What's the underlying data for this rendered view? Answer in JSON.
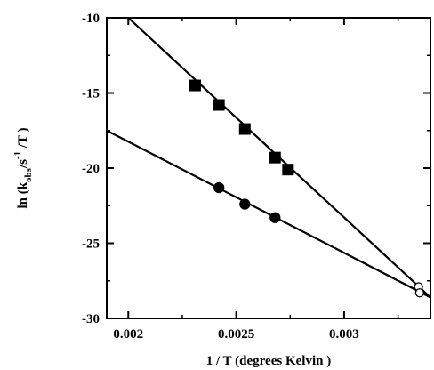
{
  "chart_data": {
    "type": "scatter",
    "title": "",
    "xlabel": "1 / T (degrees Kelvin )",
    "ylabel": {
      "prefix": "ln (k",
      "sub": "obs",
      "mid": "/s",
      "sup": "-1",
      "suffix": " /T )"
    },
    "xlim": [
      0.0019,
      0.0034
    ],
    "ylim": [
      -30,
      -10
    ],
    "x_ticks": [
      0.002,
      0.0025,
      0.003
    ],
    "x_tick_labels": [
      "0.002",
      "0.0025",
      "0.003"
    ],
    "y_ticks": [
      -30,
      -25,
      -20,
      -15,
      -10
    ],
    "y_tick_labels": [
      "-30",
      "-25",
      "-20",
      "-15",
      "-10"
    ],
    "grid": false,
    "legend": "none",
    "series": [
      {
        "marker": "square",
        "filled": true,
        "color": "#000000",
        "points": [
          [
            0.00231,
            -14.5
          ],
          [
            0.00242,
            -15.8
          ],
          [
            0.00254,
            -17.4
          ],
          [
            0.00268,
            -19.3
          ],
          [
            0.00274,
            -20.1
          ]
        ],
        "fit_line": [
          [
            0.002,
            -10.0
          ],
          [
            0.0034,
            -28.6
          ]
        ]
      },
      {
        "marker": "circle",
        "filled": true,
        "color": "#000000",
        "points": [
          [
            0.00242,
            -21.3
          ],
          [
            0.00254,
            -22.4
          ],
          [
            0.00268,
            -23.3
          ]
        ],
        "fit_line": [
          [
            0.0019,
            -17.5
          ],
          [
            0.0034,
            -28.6
          ]
        ]
      },
      {
        "marker": "circle",
        "filled": false,
        "color": "#000000",
        "points": [
          [
            0.003345,
            -27.9
          ],
          [
            0.00335,
            -28.3
          ]
        ]
      }
    ]
  }
}
